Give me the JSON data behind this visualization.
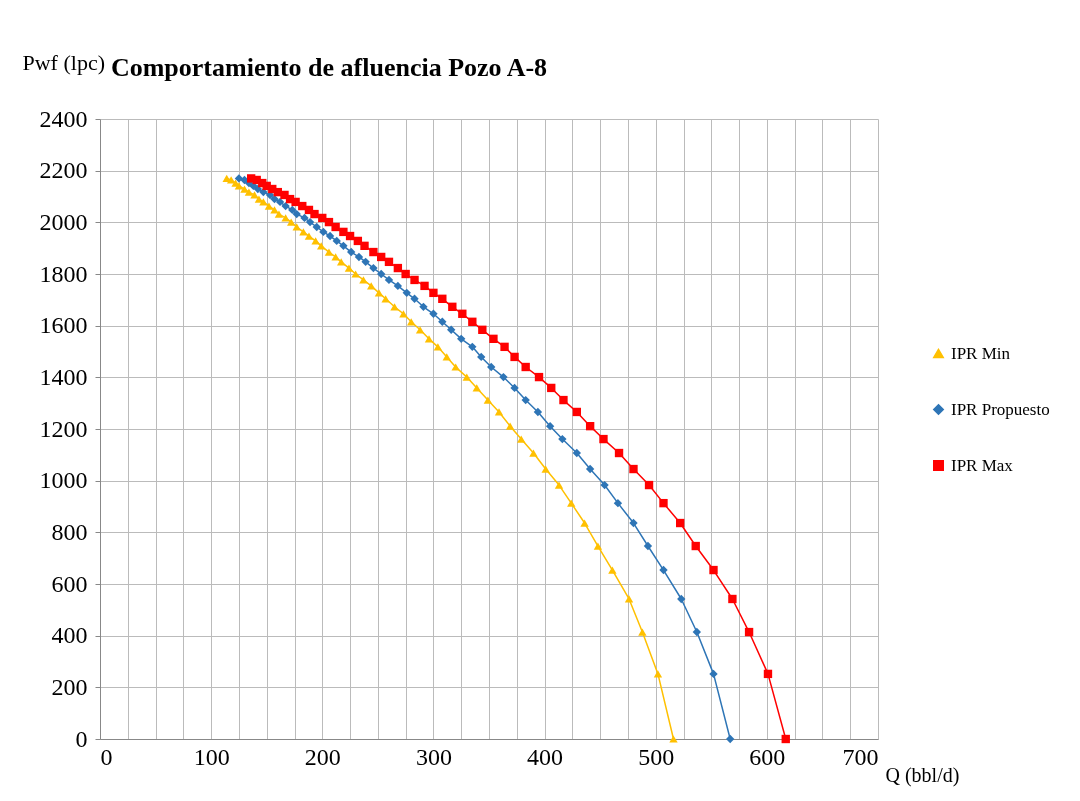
{
  "chart_data": {
    "type": "line",
    "title": "Comportamiento de afluencia Pozo A-8",
    "xlabel": "Q (bbl/d)",
    "ylabel": "Pwf (lpc)",
    "xlim": [
      0,
      700
    ],
    "xticks": [
      0,
      {
        "value": 25,
        "label": null
      },
      {
        "value": 50,
        "label": null
      },
      {
        "value": 75,
        "label": null
      },
      100,
      {
        "value": 125,
        "label": null
      },
      {
        "value": 150,
        "label": null
      },
      {
        "value": 175,
        "label": null
      },
      200,
      {
        "value": 225,
        "label": null
      },
      {
        "value": 250,
        "label": null
      },
      {
        "value": 275,
        "label": null
      },
      300,
      {
        "value": 325,
        "label": null
      },
      {
        "value": 350,
        "label": null
      },
      {
        "value": 375,
        "label": null
      },
      400,
      {
        "value": 425,
        "label": null
      },
      {
        "value": 450,
        "label": null
      },
      {
        "value": 475,
        "label": null
      },
      500,
      {
        "value": 525,
        "label": null
      },
      {
        "value": 550,
        "label": null
      },
      {
        "value": 575,
        "label": null
      },
      600,
      {
        "value": 625,
        "label": null
      },
      {
        "value": 650,
        "label": null
      },
      {
        "value": 675,
        "label": null
      },
      700
    ],
    "ylim": [
      0,
      2400
    ],
    "yticks": [
      0,
      200,
      400,
      600,
      800,
      1000,
      1200,
      1400,
      1600,
      1800,
      2000,
      2200,
      2400
    ],
    "grid": true,
    "legend": "right",
    "series": [
      {
        "name": "IPR Min",
        "color": "#ffc000",
        "marker": "triangle",
        "x": [
          516,
          502,
          488,
          476,
          461,
          448,
          436,
          424,
          413,
          401,
          390,
          379,
          369,
          359,
          349,
          339,
          330,
          320,
          312,
          304,
          296,
          288,
          280,
          273,
          265,
          257,
          251,
          244,
          237,
          230,
          224,
          217,
          212,
          206,
          199,
          194,
          188,
          183,
          177,
          172,
          167,
          161,
          157,
          152,
          147,
          143,
          139,
          134,
          130,
          125,
          122,
          118,
          114
        ],
        "values": [
          0,
          252,
          414,
          542,
          654,
          747,
          836,
          913,
          983,
          1045,
          1107,
          1161,
          1211,
          1266,
          1312,
          1359,
          1401,
          1440,
          1479,
          1518,
          1549,
          1584,
          1615,
          1646,
          1673,
          1704,
          1727,
          1754,
          1777,
          1800,
          1823,
          1847,
          1866,
          1885,
          1909,
          1928,
          1947,
          1963,
          1982,
          2001,
          2017,
          2032,
          2048,
          2063,
          2079,
          2090,
          2106,
          2117,
          2129,
          2141,
          2152,
          2164,
          2170
        ]
      },
      {
        "name": "IPR Propuesto",
        "color": "#2e75b6",
        "marker": "diamond",
        "x": [
          567,
          552,
          537,
          523,
          507,
          493,
          480,
          466,
          454,
          441,
          429,
          416,
          405,
          394,
          383,
          373,
          363,
          352,
          343,
          335,
          325,
          316,
          308,
          300,
          291,
          283,
          276,
          268,
          260,
          253,
          246,
          239,
          233,
          226,
          219,
          213,
          207,
          201,
          195,
          189,
          184,
          177,
          173,
          167,
          162,
          157,
          153,
          147,
          142,
          138,
          134,
          130,
          125
        ],
        "values": [
          0,
          252,
          414,
          542,
          654,
          747,
          836,
          913,
          983,
          1045,
          1107,
          1161,
          1211,
          1266,
          1312,
          1359,
          1401,
          1440,
          1479,
          1518,
          1549,
          1584,
          1615,
          1646,
          1673,
          1704,
          1727,
          1754,
          1777,
          1800,
          1823,
          1847,
          1866,
          1885,
          1909,
          1928,
          1947,
          1963,
          1982,
          2001,
          2017,
          2032,
          2048,
          2063,
          2079,
          2090,
          2106,
          2117,
          2129,
          2141,
          2152,
          2164,
          2170
        ]
      },
      {
        "name": "IPR Max",
        "color": "#ff0000",
        "marker": "square",
        "x": [
          617,
          601,
          584,
          569,
          552,
          536,
          522,
          507,
          494,
          480,
          467,
          453,
          441,
          429,
          417,
          406,
          395,
          383,
          373,
          364,
          354,
          344,
          335,
          326,
          317,
          308,
          300,
          292,
          283,
          275,
          268,
          260,
          253,
          246,
          238,
          232,
          225,
          219,
          212,
          206,
          200,
          193,
          188,
          182,
          176,
          171,
          166,
          160,
          155,
          150,
          146,
          141,
          136
        ],
        "values": [
          0,
          252,
          414,
          542,
          654,
          747,
          836,
          913,
          983,
          1045,
          1107,
          1161,
          1211,
          1266,
          1312,
          1359,
          1401,
          1440,
          1479,
          1518,
          1549,
          1584,
          1615,
          1646,
          1673,
          1704,
          1727,
          1754,
          1777,
          1800,
          1823,
          1847,
          1866,
          1885,
          1909,
          1928,
          1947,
          1963,
          1982,
          2001,
          2017,
          2032,
          2048,
          2063,
          2079,
          2090,
          2106,
          2117,
          2129,
          2141,
          2152,
          2164,
          2170
        ]
      }
    ]
  }
}
